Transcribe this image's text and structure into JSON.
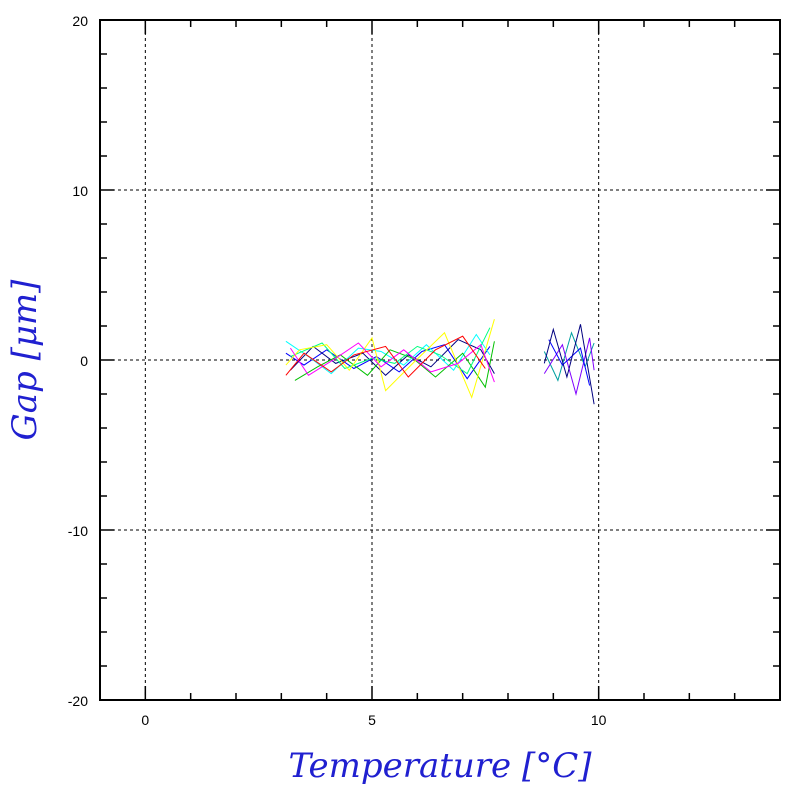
{
  "chart_data": {
    "type": "line",
    "title": "",
    "xlabel": "Temperature [°C]",
    "ylabel": "Gap [μm]",
    "xlim": [
      -1,
      14
    ],
    "ylim": [
      -20,
      20
    ],
    "x_ticks": [
      0,
      5,
      10
    ],
    "y_ticks": [
      -20,
      -10,
      0,
      10,
      20
    ],
    "x_tick_labels": [
      "0",
      "5",
      "10"
    ],
    "y_tick_labels": [
      "-20",
      "-10",
      "0",
      "10",
      "20"
    ],
    "grid": true,
    "legend": "none",
    "series_colors": [
      "#0000ff",
      "#000080",
      "#00ffff",
      "#00c000",
      "#00ff7f",
      "#ffff00",
      "#ff00ff",
      "#ff0000",
      "#00a0a0",
      "#8000ff"
    ],
    "series": [
      {
        "x": [
          3.1,
          3.5,
          4.0,
          4.6,
          5.1,
          5.6,
          6.1,
          6.6,
          7.1,
          7.6
        ],
        "y": [
          0.4,
          -0.3,
          0.6,
          -0.5,
          0.2,
          -0.7,
          0.5,
          0.9,
          -1.1,
          0.8
        ]
      },
      {
        "x": [
          3.2,
          3.7,
          4.2,
          4.8,
          5.3,
          5.8,
          6.3,
          6.9,
          7.4,
          7.7
        ],
        "y": [
          -0.6,
          0.8,
          -0.2,
          0.4,
          -0.9,
          0.3,
          -0.4,
          1.2,
          0.6,
          -0.8
        ]
      },
      {
        "x": [
          3.1,
          3.6,
          4.1,
          4.7,
          5.2,
          5.7,
          6.2,
          6.8,
          7.3,
          7.6
        ],
        "y": [
          1.1,
          0.2,
          -0.8,
          0.7,
          0.5,
          -0.3,
          0.9,
          -0.6,
          1.5,
          0.3
        ]
      },
      {
        "x": [
          3.3,
          3.8,
          4.3,
          4.9,
          5.4,
          5.9,
          6.4,
          7.0,
          7.5,
          7.7
        ],
        "y": [
          -1.2,
          -0.4,
          0.3,
          -0.9,
          0.6,
          0.1,
          -1.0,
          0.4,
          -1.6,
          1.1
        ]
      },
      {
        "x": [
          3.2,
          3.9,
          4.4,
          5.0,
          5.5,
          6.0,
          6.5,
          7.1,
          7.6
        ],
        "y": [
          0.2,
          1.0,
          -0.5,
          0.1,
          -0.2,
          0.8,
          0.3,
          -0.8,
          1.9
        ]
      },
      {
        "x": [
          3.1,
          3.4,
          4.0,
          4.5,
          5.0,
          5.3,
          5.9,
          6.6,
          7.2,
          7.7
        ],
        "y": [
          -0.3,
          0.6,
          0.9,
          -0.6,
          1.3,
          -1.8,
          -0.2,
          1.6,
          -2.2,
          2.4
        ]
      },
      {
        "x": [
          3.2,
          3.6,
          4.2,
          4.7,
          5.2,
          5.7,
          6.3,
          6.9,
          7.4,
          7.7
        ],
        "y": [
          0.7,
          -0.9,
          0.1,
          1.0,
          -0.4,
          0.6,
          -0.7,
          -0.2,
          0.9,
          -1.3
        ]
      },
      {
        "x": [
          3.1,
          3.5,
          4.1,
          4.6,
          5.3,
          5.8,
          6.4,
          7.0,
          7.5
        ],
        "y": [
          -0.9,
          0.4,
          -0.7,
          0.3,
          0.8,
          -1.0,
          0.6,
          1.4,
          -0.5
        ]
      },
      {
        "x": [
          8.8,
          9.1,
          9.4,
          9.7,
          9.9
        ],
        "y": [
          0.5,
          -1.2,
          1.6,
          -0.4,
          1.0
        ]
      },
      {
        "x": [
          8.8,
          9.2,
          9.5,
          9.8,
          9.9
        ],
        "y": [
          -0.8,
          0.9,
          -2.0,
          1.3,
          -0.6
        ]
      },
      {
        "x": [
          8.9,
          9.2,
          9.6,
          9.8
        ],
        "y": [
          1.2,
          -0.3,
          0.7,
          -1.5
        ]
      },
      {
        "x": [
          8.8,
          9.0,
          9.3,
          9.6,
          9.9
        ],
        "y": [
          -0.2,
          1.8,
          -1.0,
          2.1,
          -2.6
        ]
      }
    ]
  }
}
